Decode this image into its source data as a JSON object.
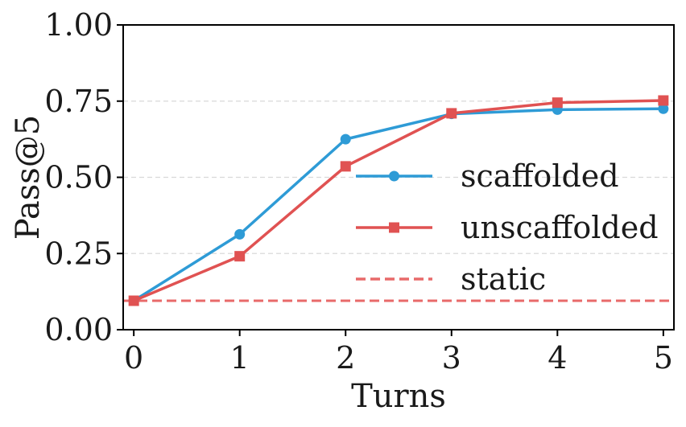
{
  "chart_data": {
    "type": "line",
    "title": "",
    "xlabel": "Turns",
    "ylabel": "Pass@5",
    "x": [
      0,
      1,
      2,
      3,
      4,
      5
    ],
    "xlim": [
      -0.1,
      5.1
    ],
    "ylim": [
      0,
      1.0
    ],
    "xticks": [
      0,
      1,
      2,
      3,
      4,
      5
    ],
    "xtick_labels": [
      "0",
      "1",
      "2",
      "3",
      "4",
      "5"
    ],
    "yticks": [
      0,
      0.25,
      0.5,
      0.75,
      1.0
    ],
    "ytick_labels": [
      "0.00",
      "0.25",
      "0.50",
      "0.75",
      "1.00"
    ],
    "grid": "horizontal dashed",
    "legend_position": "center-right",
    "series": [
      {
        "name": "scaffolded",
        "color": "#2e9bd6",
        "marker": "circle",
        "values": [
          0.095,
          0.313,
          0.625,
          0.708,
          0.722,
          0.725
        ]
      },
      {
        "name": "unscaffolded",
        "color": "#e05252",
        "marker": "square",
        "values": [
          0.095,
          0.241,
          0.536,
          0.71,
          0.745,
          0.752
        ]
      }
    ],
    "reference_lines": [
      {
        "name": "static",
        "color": "#e86a6a",
        "style": "dashed",
        "value": 0.095
      }
    ]
  }
}
